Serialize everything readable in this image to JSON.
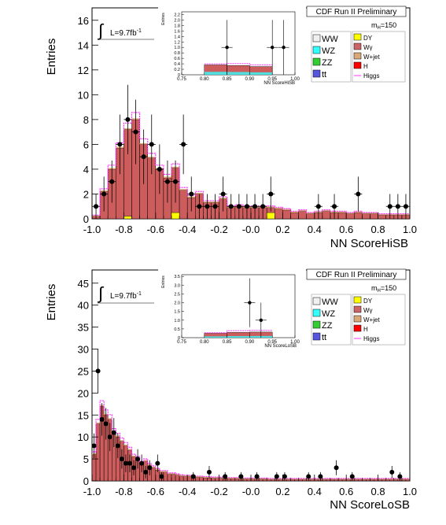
{
  "chart_data": [
    {
      "type": "bar",
      "title": "CDF Run II Preliminary",
      "xlabel": "NN ScoreHiSB",
      "ylabel": "Entries",
      "luminosity_label": "L=9.7fb",
      "luminosity_exp": "-1",
      "mass_label": "m",
      "mass_sub": "H",
      "mass_value": "=150",
      "xlim": [
        -1.0,
        1.0
      ],
      "ylim": [
        0,
        17
      ],
      "xticks": [
        "-1.0",
        "-0.8",
        "-0.6",
        "-0.4",
        "-0.2",
        "-0.0",
        "0.2",
        "0.4",
        "0.6",
        "0.8",
        "1.0"
      ],
      "yticks": [
        "0",
        "2",
        "4",
        "6",
        "8",
        "10",
        "12",
        "14",
        "16"
      ],
      "bin_width": 0.05,
      "bins_x": [
        -0.975,
        -0.925,
        -0.875,
        -0.825,
        -0.775,
        -0.725,
        -0.675,
        -0.625,
        -0.575,
        -0.525,
        -0.475,
        -0.425,
        -0.375,
        -0.325,
        -0.275,
        -0.225,
        -0.175,
        -0.125,
        -0.075,
        -0.025,
        0.025,
        0.075,
        0.125,
        0.175,
        0.225,
        0.275,
        0.325,
        0.375,
        0.425,
        0.475,
        0.525,
        0.575,
        0.625,
        0.675,
        0.725,
        0.775,
        0.825,
        0.875,
        0.925,
        0.975
      ],
      "background_total": [
        0.2,
        2.2,
        4.0,
        5.7,
        7.2,
        8.0,
        6.0,
        4.9,
        4.0,
        3.3,
        4.1,
        2.3,
        1.7,
        2.0,
        1.3,
        1.3,
        1.6,
        0.9,
        1.0,
        0.9,
        0.9,
        0.9,
        0.9,
        0.8,
        0.7,
        0.5,
        0.6,
        0.4,
        0.5,
        0.6,
        0.5,
        0.5,
        0.4,
        0.5,
        0.4,
        0.4,
        0.3,
        0.3,
        0.3,
        0.3
      ],
      "dy_contribution": [
        0.0,
        0.0,
        0.0,
        0.0,
        0.2,
        0.0,
        0.0,
        0.0,
        0.0,
        0.0,
        0.5,
        0.0,
        0.0,
        0.0,
        0.0,
        0.0,
        0.0,
        0.0,
        0.0,
        0.0,
        0.0,
        0.0,
        0.5,
        0.0,
        0.0,
        0.0,
        0.0,
        0.0,
        0.0,
        0.0,
        0.0,
        0.0,
        0.0,
        0.0,
        0.0,
        0.0,
        0.0,
        0.0,
        0.0,
        0.0
      ],
      "data_points": [
        {
          "x": -0.975,
          "y": 1,
          "err": 1.0
        },
        {
          "x": -0.925,
          "y": 2,
          "err": 1.4
        },
        {
          "x": -0.875,
          "y": 3,
          "err": 1.7
        },
        {
          "x": -0.825,
          "y": 6,
          "err": 2.4
        },
        {
          "x": -0.775,
          "y": 8,
          "err": 2.8
        },
        {
          "x": -0.725,
          "y": 7,
          "err": 2.6
        },
        {
          "x": -0.675,
          "y": 5,
          "err": 2.2
        },
        {
          "x": -0.625,
          "y": 6,
          "err": 2.4
        },
        {
          "x": -0.575,
          "y": 4,
          "err": 2.0
        },
        {
          "x": -0.525,
          "y": 3,
          "err": 1.7
        },
        {
          "x": -0.475,
          "y": 3,
          "err": 1.7
        },
        {
          "x": -0.425,
          "y": 6,
          "err": 2.4
        },
        {
          "x": -0.375,
          "y": 2,
          "err": 1.4
        },
        {
          "x": -0.325,
          "y": 1,
          "err": 1.0
        },
        {
          "x": -0.275,
          "y": 1,
          "err": 1.0
        },
        {
          "x": -0.225,
          "y": 1,
          "err": 1.0
        },
        {
          "x": -0.175,
          "y": 2,
          "err": 1.4
        },
        {
          "x": -0.125,
          "y": 1,
          "err": 1.0
        },
        {
          "x": -0.075,
          "y": 1,
          "err": 1.0
        },
        {
          "x": -0.025,
          "y": 1,
          "err": 1.0
        },
        {
          "x": 0.025,
          "y": 1,
          "err": 1.0
        },
        {
          "x": 0.075,
          "y": 1,
          "err": 1.0
        },
        {
          "x": 0.125,
          "y": 2,
          "err": 1.4
        },
        {
          "x": 0.425,
          "y": 1,
          "err": 1.0
        },
        {
          "x": 0.525,
          "y": 1,
          "err": 1.0
        },
        {
          "x": 0.675,
          "y": 2,
          "err": 1.4
        },
        {
          "x": 0.875,
          "y": 1,
          "err": 1.0
        },
        {
          "x": 0.925,
          "y": 1,
          "err": 1.0
        },
        {
          "x": 0.975,
          "y": 1,
          "err": 1.0
        }
      ],
      "inset": {
        "xlabel": "NN ScoreHiSB",
        "ylabel": "Entries",
        "xlim": [
          0.75,
          1.0
        ],
        "ylim": [
          0,
          2.3
        ],
        "xticks": [
          "0.75",
          "0.80",
          "0.85",
          "0.90",
          "0.95",
          "1.00"
        ],
        "yticks": [
          "0",
          "0.2",
          "0.4",
          "0.6",
          "0.8",
          "1.0",
          "1.2",
          "1.4",
          "1.6",
          "1.8",
          "2.0",
          "2.2"
        ],
        "bin_edges": [
          0.8,
          0.85,
          0.9,
          0.95
        ],
        "background": [
          0.36,
          0.34,
          0.3
        ],
        "higgs": [
          0.4,
          0.41,
          0.36
        ],
        "data_points": [
          {
            "x": 0.85,
            "y": 1,
            "err": 1.0
          },
          {
            "x": 0.95,
            "y": 1,
            "err": 1.0
          },
          {
            "x": 0.975,
            "y": 1,
            "err": 1.0
          }
        ]
      }
    },
    {
      "type": "bar",
      "title": "CDF Run II Preliminary",
      "xlabel": "NN ScoreLoSB",
      "ylabel": "Entries",
      "luminosity_label": "L=9.7fb",
      "luminosity_exp": "-1",
      "mass_label": "m",
      "mass_sub": "H",
      "mass_value": "=150",
      "xlim": [
        -1.0,
        1.0
      ],
      "ylim": [
        0,
        48
      ],
      "xticks": [
        "-1.0",
        "-0.8",
        "-0.6",
        "-0.4",
        "-0.2",
        "-0.0",
        "0.2",
        "0.4",
        "0.6",
        "0.8",
        "1.0"
      ],
      "yticks": [
        "0",
        "5",
        "10",
        "15",
        "20",
        "25",
        "30",
        "35",
        "40",
        "45"
      ],
      "bin_width": 0.025,
      "bins_x": [
        -0.9875,
        -0.9625,
        -0.9375,
        -0.9125,
        -0.8875,
        -0.8625,
        -0.8375,
        -0.8125,
        -0.7875,
        -0.7625,
        -0.7375,
        -0.7125,
        -0.6875,
        -0.6625,
        -0.6375,
        -0.6125,
        -0.5875,
        -0.5625,
        -0.5375,
        -0.5125,
        -0.4875,
        -0.4625,
        -0.4375,
        -0.4125,
        -0.3875,
        -0.3625,
        -0.3375,
        -0.3125,
        -0.2875,
        -0.2625,
        -0.2375,
        -0.2125,
        -0.1875,
        -0.1625,
        -0.1375,
        -0.1125,
        -0.0875,
        -0.0625,
        -0.0375,
        -0.0125,
        0.0125,
        0.0375,
        0.0625,
        0.0875,
        0.1125,
        0.1375,
        0.1625,
        0.1875,
        0.2125,
        0.2375,
        0.2625,
        0.2875,
        0.3125,
        0.3375,
        0.3625,
        0.3875,
        0.4125,
        0.4375,
        0.4625,
        0.4875,
        0.5125,
        0.5375,
        0.5625,
        0.5875,
        0.6125,
        0.6375,
        0.6625,
        0.6875,
        0.7125,
        0.7375,
        0.7625,
        0.7875,
        0.8125,
        0.8375,
        0.8625,
        0.8875,
        0.9125,
        0.9375,
        0.9625,
        0.9875
      ],
      "background_total": [
        6.0,
        13.0,
        17.0,
        15.0,
        14.0,
        11.0,
        10.0,
        9.0,
        8.0,
        7.0,
        5.5,
        5.0,
        4.0,
        4.5,
        3.5,
        3.0,
        2.5,
        2.0,
        2.0,
        1.5,
        1.5,
        1.3,
        1.1,
        1.0,
        1.0,
        0.9,
        0.8,
        0.8,
        0.7,
        0.7,
        0.6,
        0.6,
        0.6,
        0.5,
        0.5,
        0.5,
        0.5,
        0.4,
        0.4,
        0.4,
        0.4,
        0.4,
        0.4,
        0.4,
        0.3,
        0.3,
        0.3,
        0.3,
        0.3,
        0.3,
        0.3,
        0.3,
        0.3,
        0.3,
        0.3,
        0.3,
        0.3,
        0.3,
        0.3,
        0.3,
        0.3,
        0.3,
        0.3,
        0.3,
        0.3,
        0.3,
        0.3,
        0.3,
        0.3,
        0.3,
        0.3,
        0.3,
        0.3,
        0.3,
        0.3,
        0.3,
        0.3,
        0.3,
        0.3,
        0.3
      ],
      "data_points": [
        {
          "x": -0.9875,
          "y": 8,
          "err": 2.8
        },
        {
          "x": -0.9625,
          "y": 25,
          "err": 5.0
        },
        {
          "x": -0.9375,
          "y": 14,
          "err": 3.7
        },
        {
          "x": -0.9125,
          "y": 13,
          "err": 3.6
        },
        {
          "x": -0.8875,
          "y": 10,
          "err": 3.2
        },
        {
          "x": -0.8625,
          "y": 11,
          "err": 3.3
        },
        {
          "x": -0.8375,
          "y": 8,
          "err": 2.8
        },
        {
          "x": -0.8125,
          "y": 5,
          "err": 2.2
        },
        {
          "x": -0.7875,
          "y": 4,
          "err": 2.0
        },
        {
          "x": -0.7625,
          "y": 4,
          "err": 2.0
        },
        {
          "x": -0.7375,
          "y": 3,
          "err": 1.7
        },
        {
          "x": -0.7125,
          "y": 5,
          "err": 2.2
        },
        {
          "x": -0.6875,
          "y": 4,
          "err": 2.0
        },
        {
          "x": -0.6625,
          "y": 2,
          "err": 1.4
        },
        {
          "x": -0.6375,
          "y": 3,
          "err": 1.7
        },
        {
          "x": -0.5875,
          "y": 4,
          "err": 2.0
        },
        {
          "x": -0.5625,
          "y": 1,
          "err": 1.0
        },
        {
          "x": -0.3625,
          "y": 1,
          "err": 1.0
        },
        {
          "x": -0.2625,
          "y": 2,
          "err": 1.4
        },
        {
          "x": -0.1625,
          "y": 1,
          "err": 1.0
        },
        {
          "x": -0.0625,
          "y": 1,
          "err": 1.0
        },
        {
          "x": 0.0375,
          "y": 1,
          "err": 1.0
        },
        {
          "x": 0.1625,
          "y": 1,
          "err": 1.0
        },
        {
          "x": 0.2125,
          "y": 1,
          "err": 1.0
        },
        {
          "x": 0.3625,
          "y": 1,
          "err": 1.0
        },
        {
          "x": 0.4375,
          "y": 1,
          "err": 1.0
        },
        {
          "x": 0.5375,
          "y": 3,
          "err": 1.7
        },
        {
          "x": 0.6375,
          "y": 1,
          "err": 1.0
        },
        {
          "x": 0.8875,
          "y": 2,
          "err": 1.4
        },
        {
          "x": 0.9375,
          "y": 1,
          "err": 1.0
        }
      ],
      "inset": {
        "xlabel": "NN ScoreLoSB",
        "ylabel": "Entries",
        "xlim": [
          0.75,
          1.0
        ],
        "ylim": [
          0,
          3.6
        ],
        "xticks": [
          "0.75",
          "0.80",
          "0.85",
          "0.90",
          "0.95",
          "1.00"
        ],
        "yticks": [
          "0",
          "0.5",
          "1.0",
          "1.5",
          "2.0",
          "2.5",
          "3.0",
          "3.5"
        ],
        "bin_edges": [
          0.8,
          0.85,
          0.9,
          0.95
        ],
        "background": [
          0.25,
          0.3,
          0.32
        ],
        "higgs": [
          0.28,
          0.4,
          0.42
        ],
        "data_points": [
          {
            "x": 0.9,
            "y": 2,
            "err": 1.4
          },
          {
            "x": 0.925,
            "y": 1,
            "err": 1.0
          }
        ]
      }
    }
  ],
  "legend": [
    {
      "label": "WW",
      "color": "#f0f0f0"
    },
    {
      "label": "WZ",
      "color": "#33ffff"
    },
    {
      "label": "ZZ",
      "color": "#33cc33"
    },
    {
      "label": "t",
      "suffix": "t",
      "color": "#5555dd"
    },
    {
      "label": "DY",
      "color": "#ffff00"
    },
    {
      "label": "Wγ",
      "color": "#cc6666"
    },
    {
      "label": "W+jet",
      "color": "#d8a878"
    },
    {
      "label": "H",
      "color": "#ff0000"
    },
    {
      "label": "Higgs",
      "color": "#ff33ff"
    }
  ],
  "colors": {
    "stack_main": "#cd5c5c",
    "higgs_line": "#ff33ff",
    "dy": "#ffff00",
    "data": "#000000"
  }
}
